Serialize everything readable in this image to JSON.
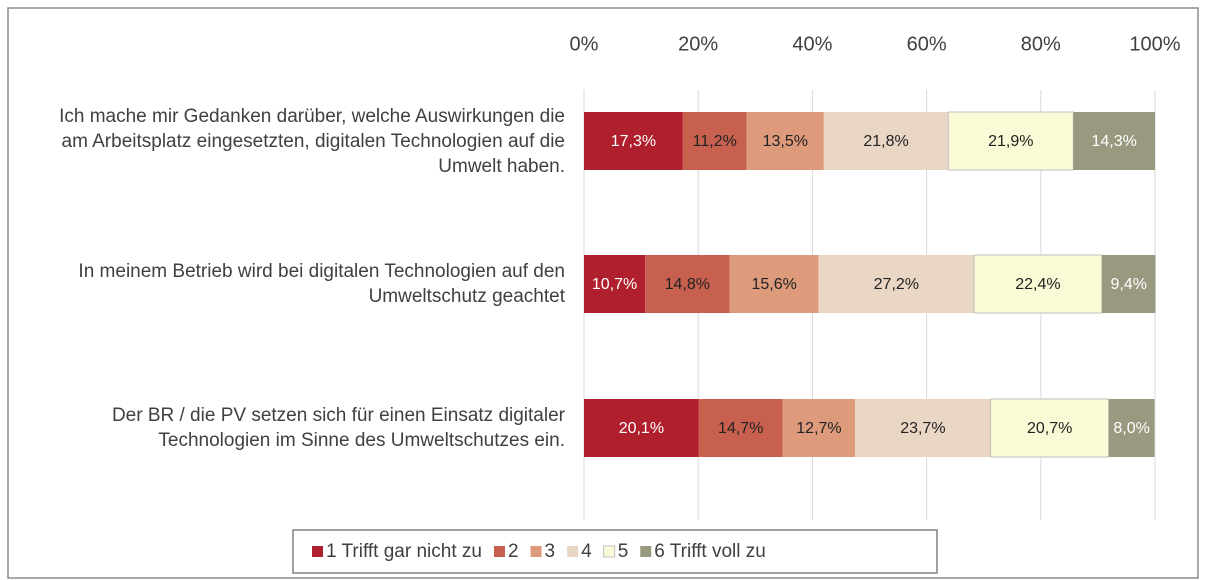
{
  "chart_data": {
    "type": "stacked-bar-horizontal",
    "categories": [
      "Ich mache mir Gedanken darüber, welche Auswirkungen die am Arbeitsplatz eingesetzten, digitalen Technologien auf die Umwelt haben.",
      "In meinem Betrieb wird bei digitalen Technologien auf den Umweltschutz geachtet",
      "Der BR / die PV setzen sich für einen Einsatz digitaler Technologien im Sinne des Umweltschutzes ein."
    ],
    "series": [
      {
        "name": "1 Trifft gar nicht zu",
        "color": "#b01f2e",
        "values": [
          17.3,
          10.7,
          20.1
        ],
        "value_labels": [
          "17,3%",
          "10,7%",
          "20,1%"
        ]
      },
      {
        "name": "2",
        "color": "#c8604f",
        "values": [
          11.2,
          14.8,
          14.7
        ],
        "value_labels": [
          "11,2%",
          "14,8%",
          "14,7%"
        ]
      },
      {
        "name": "3",
        "color": "#de9b7c",
        "values": [
          13.5,
          15.6,
          12.7
        ],
        "value_labels": [
          "13,5%",
          "15,6%",
          "12,7%"
        ]
      },
      {
        "name": "4",
        "color": "#ead6c4",
        "values": [
          21.8,
          27.2,
          23.7
        ],
        "value_labels": [
          "21,8%",
          "27,2%",
          "23,7%"
        ]
      },
      {
        "name": "5",
        "color": "#fafad7",
        "values": [
          21.9,
          22.4,
          20.7
        ],
        "value_labels": [
          "21,9%",
          "22,4%",
          "20,7%"
        ]
      },
      {
        "name": "6 Trifft voll zu",
        "color": "#999980",
        "values": [
          14.3,
          9.4,
          8.0
        ],
        "value_labels": [
          "14,3%",
          "9,4%",
          "8,0%"
        ]
      }
    ],
    "xlim": [
      0,
      100
    ],
    "xticks": [
      {
        "value": 0,
        "label": "0%"
      },
      {
        "value": 20,
        "label": "20%"
      },
      {
        "value": 40,
        "label": "40%"
      },
      {
        "value": 60,
        "label": "60%"
      },
      {
        "value": 80,
        "label": "80%"
      },
      {
        "value": 100,
        "label": "100%"
      }
    ],
    "grid": true,
    "legend": "bottom"
  }
}
